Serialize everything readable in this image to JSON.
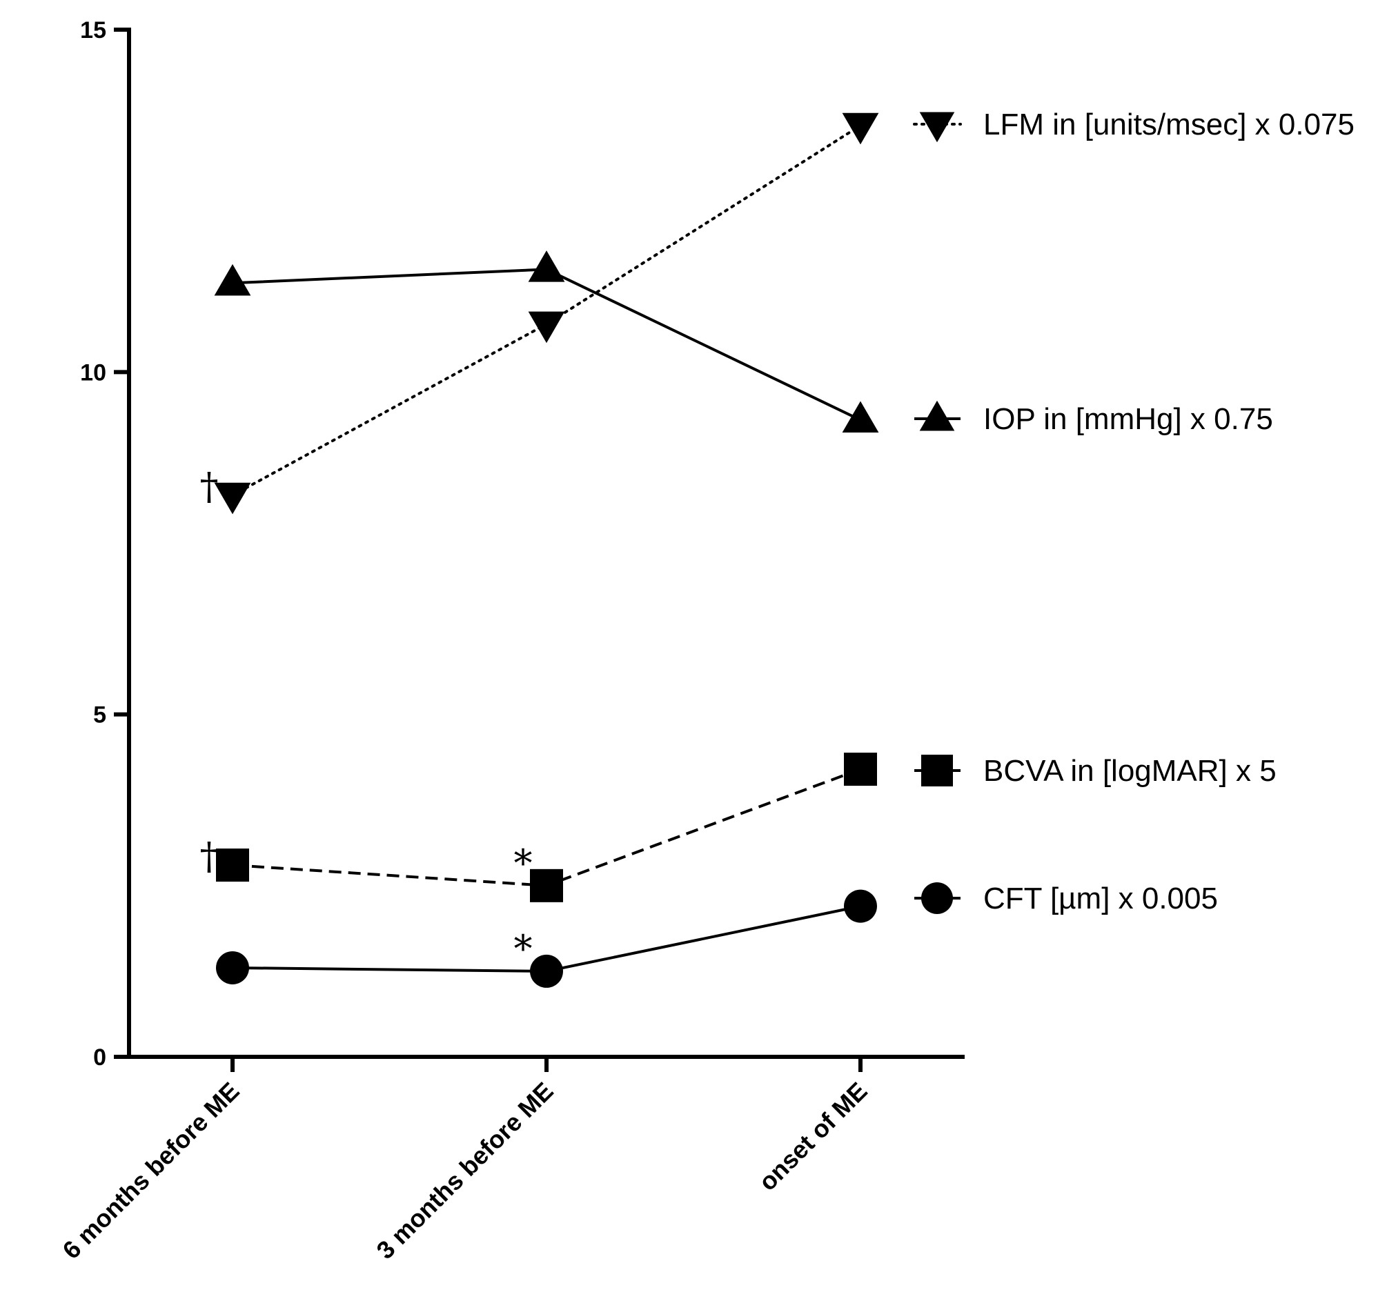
{
  "chart_data": {
    "type": "line",
    "title": "",
    "xlabel": "",
    "ylabel": "",
    "categories": [
      "6 months before ME",
      "3 months before ME",
      "onset of ME"
    ],
    "ylim": [
      0,
      15
    ],
    "yticks": [
      0,
      5,
      10,
      15
    ],
    "yticks_labels": [
      "0",
      "5",
      "10",
      "15"
    ],
    "grid": false,
    "legend_position": "right",
    "series": [
      {
        "key": "lfm",
        "name": "LFM in [units/msec] x 0.075",
        "marker": "triangle-down",
        "line_style": "dotted",
        "values": [
          8.2,
          10.7,
          13.6
        ]
      },
      {
        "key": "iop",
        "name": "IOP in [mmHg] x 0.75",
        "marker": "triangle-up",
        "line_style": "solid",
        "values": [
          11.3,
          11.5,
          9.3
        ]
      },
      {
        "key": "bcva",
        "name": "BCVA in [logMAR] x 5",
        "marker": "square",
        "line_style": "dashed",
        "values": [
          2.8,
          2.5,
          4.2
        ]
      },
      {
        "key": "cft",
        "name": "CFT [µm] x 0.005",
        "marker": "circle",
        "line_style": "solid",
        "values": [
          1.3,
          1.25,
          2.2
        ]
      }
    ],
    "annotations": [
      {
        "series": "lfm",
        "index": 0,
        "text": "†"
      },
      {
        "series": "bcva",
        "index": 0,
        "text": "†"
      },
      {
        "series": "bcva",
        "index": 1,
        "text": "*"
      },
      {
        "series": "cft",
        "index": 1,
        "text": "*"
      }
    ]
  }
}
